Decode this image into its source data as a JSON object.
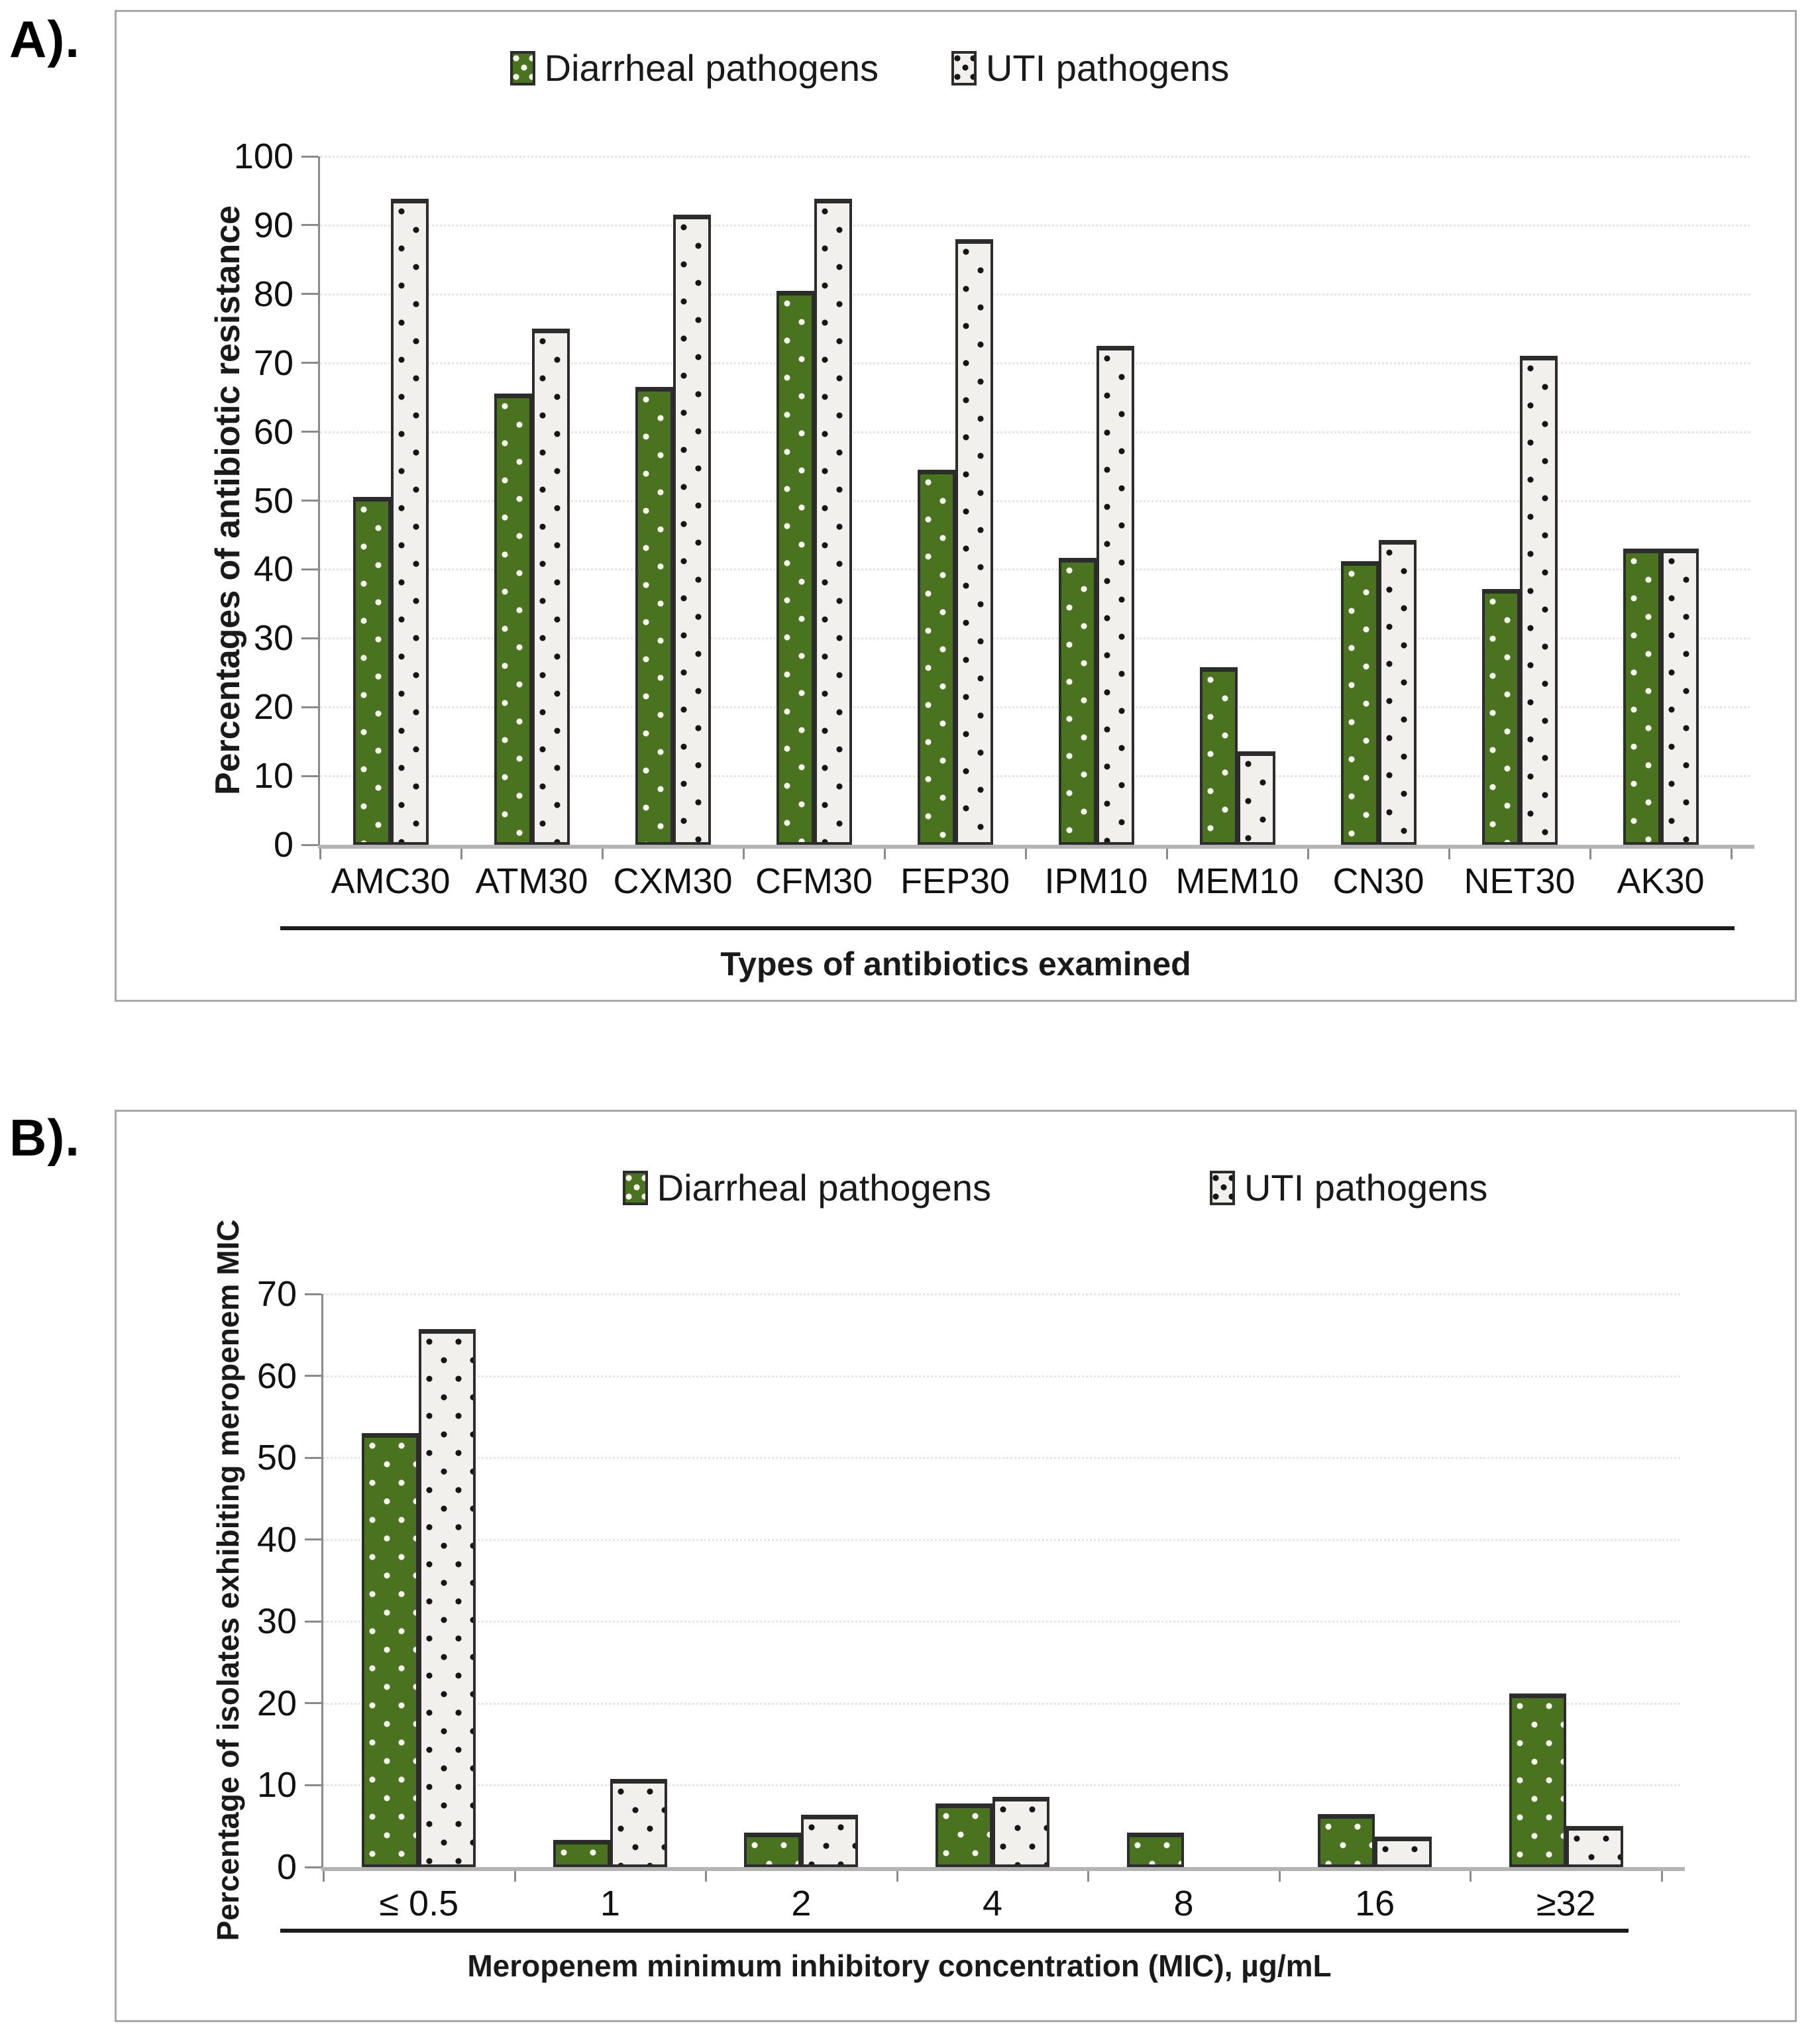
{
  "figure": {
    "panel_a_label": "A).",
    "panel_b_label": "B).",
    "legend": [
      {
        "name": "Diarrheal pathogens",
        "swatch": "green"
      },
      {
        "name": "UTI pathogens",
        "swatch": "uti"
      }
    ],
    "colors": {
      "diarrheal_fill": "#4a731f",
      "diarrheal_dot": "#f8f8f0",
      "uti_fill": "#f1f0ed",
      "uti_dot": "#151515",
      "bar_border": "#2c2c2c",
      "axis_line": "#8a8a8a",
      "baseline": "#b4b4b4",
      "gridline": "#e5e5e5",
      "panel_border": "#a9a9a9"
    }
  },
  "chart_data": [
    {
      "id": "A",
      "type": "bar",
      "title": "",
      "categories": [
        "AMC30",
        "ATM30",
        "CXM30",
        "CFM30",
        "FEP30",
        "IPM10",
        "MEM10",
        "CN30",
        "NET30",
        "AK30"
      ],
      "series": [
        {
          "name": "Diarrheal pathogens",
          "values": [
            50.5,
            65.5,
            66.5,
            80.5,
            54.5,
            41.7,
            25.8,
            41.2,
            37.2,
            43.0
          ]
        },
        {
          "name": "UTI pathogens",
          "values": [
            93.8,
            75.0,
            91.5,
            93.8,
            88.0,
            72.5,
            13.6,
            44.3,
            71.0,
            43.0
          ]
        }
      ],
      "xlabel": "Types of antibiotics examined",
      "ylabel": "Percentages of antibiotic resistance",
      "ylim": [
        0,
        100
      ],
      "ytick_step": 10,
      "grid": true,
      "legend_position": "top-center"
    },
    {
      "id": "B",
      "type": "bar",
      "title": "",
      "categories": [
        "≤ 0.5",
        "1",
        "2",
        "4",
        "8",
        "16",
        "≥32"
      ],
      "series": [
        {
          "name": "Diarrheal pathogens",
          "values": [
            53.0,
            3.3,
            4.2,
            7.8,
            4.2,
            6.5,
            21.2
          ]
        },
        {
          "name": "UTI pathogens",
          "values": [
            65.7,
            10.8,
            6.4,
            8.6,
            0,
            3.7,
            5.0
          ]
        }
      ],
      "xlabel": "Meropenem minimum inhibitory concentration (MIC), µg/mL",
      "ylabel": "Percentage of isolates exhibiting meropenem MIC",
      "ylim": [
        0,
        70
      ],
      "ytick_step": 10,
      "grid": true,
      "legend_position": "top-center"
    }
  ]
}
